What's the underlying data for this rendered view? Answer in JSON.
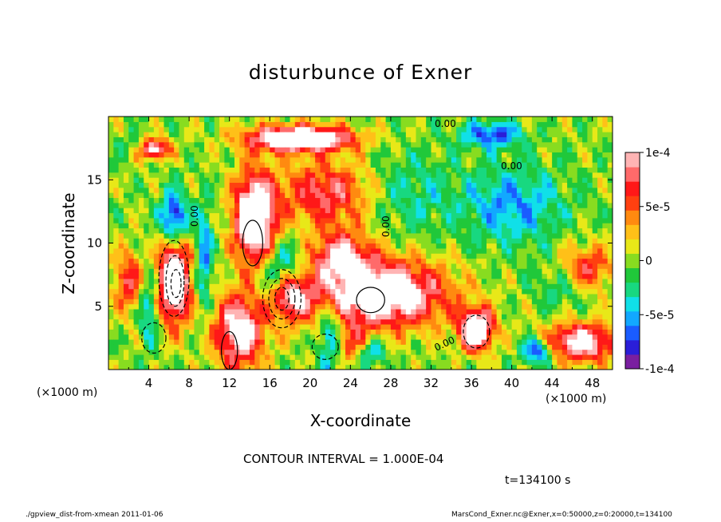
{
  "chart_data": {
    "type": "heatmap",
    "title": "disturbunce of Exner",
    "xlabel": "X-coordinate",
    "ylabel": "Z-coordinate",
    "x_unit": "(×1000 m)",
    "xlim": [
      0,
      50
    ],
    "ylim": [
      0,
      20
    ],
    "x_ticks": [
      "4",
      "8",
      "12",
      "16",
      "20",
      "24",
      "28",
      "32",
      "36",
      "40",
      "44",
      "48"
    ],
    "y_ticks": [
      "5",
      "10",
      "15"
    ],
    "colorbar": {
      "range": [
        -0.0001,
        0.0001
      ],
      "tick_labels": [
        "1e-4",
        "5e-5",
        "0",
        "-5e-5",
        "-1e-4"
      ],
      "colors": [
        "#7a1fa0",
        "#2a1ed8",
        "#1a5cff",
        "#12a8ff",
        "#10e0e8",
        "#18d880",
        "#20c83a",
        "#88dc20",
        "#e8e818",
        "#ffc018",
        "#ff8a10",
        "#ff4010",
        "#ff1818",
        "#ff6a6a",
        "#ffb4b4"
      ]
    },
    "contour_labels": [
      "0.00",
      "0.00",
      "0.00",
      "0.00",
      "0.00"
    ],
    "contour_interval": "CONTOUR INTERVAL = 1.000E-04",
    "time": "t=134100 s"
  },
  "footer": {
    "left": "./gpview_dist-from-xmean  2011-01-06",
    "right": "MarsCond_Exner.nc@Exner,x=0:50000,z=0:20000,t=134100"
  }
}
